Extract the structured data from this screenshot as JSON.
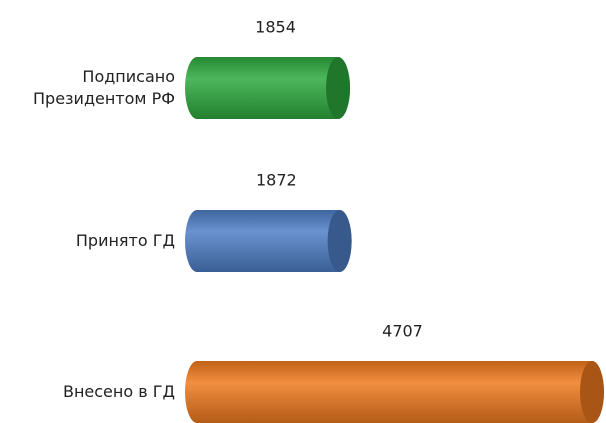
{
  "chart_data": {
    "type": "bar",
    "orientation": "horizontal",
    "categories": [
      "Подписано Президентом РФ",
      "Принято ГД",
      "Внесено в ГД"
    ],
    "values": [
      1854,
      1872,
      4707
    ],
    "colors": [
      "#2eaa3f",
      "#4f7fc6",
      "#f07a1e"
    ]
  }
}
